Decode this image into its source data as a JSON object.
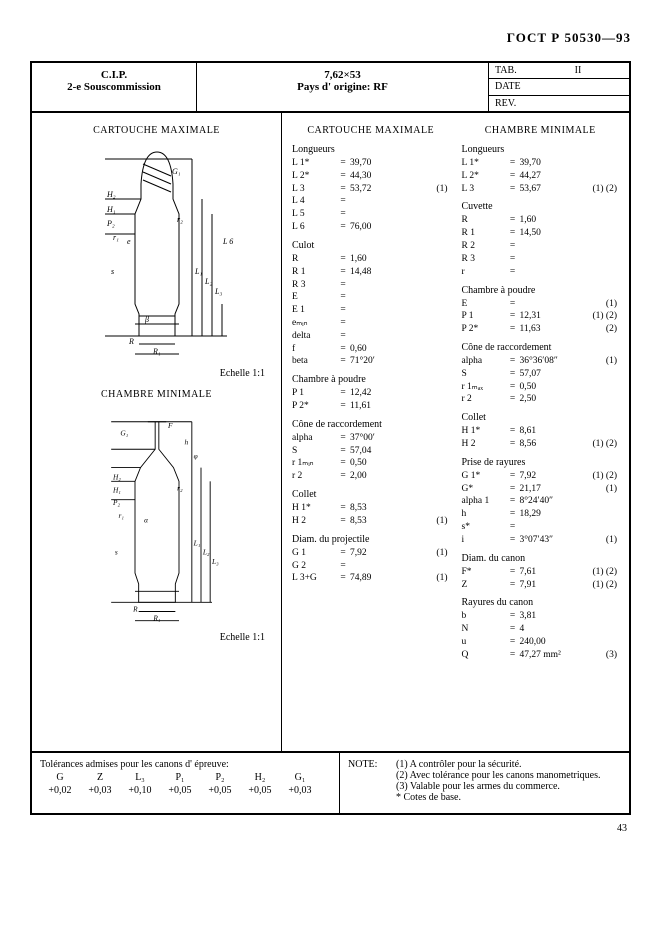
{
  "doc_id": "ГОСТ Р   50530—93",
  "header": {
    "cip": "C.I.P.",
    "sous": "2-e Souscommission",
    "caliber": "7,62×53",
    "origin": "Pays d' origine: RF",
    "tab_label": "TAB.",
    "tab_val": "II",
    "date_label": "DATE",
    "rev_label": "REV."
  },
  "left": {
    "title1": "CARTOUCHE MAXIMALE",
    "scale1": "Echelle 1:1",
    "title2": "CHAMBRE MINIMALE",
    "scale2": "Echelle 1:1",
    "diag1_labels": {
      "H2": "H₂",
      "H1": "H₁",
      "P2": "P₂",
      "r1": "r₁",
      "e": "e",
      "s": "s",
      "beta": "β",
      "R": "R",
      "Rcap": "R₁",
      "G1": "G₁",
      "r2": "r₂",
      "L1": "L₁",
      "L2": "L₂",
      "L3": "L₃",
      "L6": "L 6"
    },
    "diag2_labels": {
      "G1": "G₁",
      "F": "F",
      "h": "h",
      "phi": "φ",
      "H2": "H₂",
      "H1": "H₁",
      "P2": "P₂",
      "r1": "r₁",
      "alpha": "α",
      "s": "s",
      "r2": "r₂",
      "L1": "L₁",
      "L2": "L₂",
      "L3": "L₃",
      "R": "R",
      "R1": "R₁"
    }
  },
  "colA": {
    "title": "CARTOUCHE MAXIMALE",
    "groups": [
      {
        "head": "Longueurs",
        "rows": [
          {
            "k": "L 1*",
            "v": "39,70"
          },
          {
            "k": "L 2*",
            "v": "44,30"
          },
          {
            "k": "L 3",
            "v": "53,72",
            "n": "(1)"
          },
          {
            "k": "L 4",
            "v": ""
          },
          {
            "k": "L 5",
            "v": ""
          },
          {
            "k": "L 6",
            "v": "76,00"
          }
        ]
      },
      {
        "head": "Culot",
        "rows": [
          {
            "k": "R",
            "v": "1,60"
          },
          {
            "k": "R 1",
            "v": "14,48"
          },
          {
            "k": "R 3",
            "v": ""
          },
          {
            "k": "E",
            "v": ""
          },
          {
            "k": "E 1",
            "v": ""
          },
          {
            "k": "eₘᵢₙ",
            "v": ""
          },
          {
            "k": "delta",
            "v": ""
          },
          {
            "k": "f",
            "v": "0,60"
          },
          {
            "k": "beta",
            "v": "71°20′"
          }
        ]
      },
      {
        "head": "Chambre à poudre",
        "rows": [
          {
            "k": "P 1",
            "v": "12,42"
          },
          {
            "k": "P 2*",
            "v": "11,61"
          }
        ]
      },
      {
        "head": "Cône de raccordement",
        "rows": [
          {
            "k": "alpha",
            "v": "37°00′"
          },
          {
            "k": "S",
            "v": "57,04"
          },
          {
            "k": "r 1ₘᵢₙ",
            "v": "0,50"
          },
          {
            "k": "r 2",
            "v": "2,00"
          }
        ]
      },
      {
        "head": "Collet",
        "rows": [
          {
            "k": "H 1*",
            "v": "8,53"
          },
          {
            "k": "H 2",
            "v": "8,53",
            "n": "(1)"
          }
        ]
      },
      {
        "head": "Diam. du projectile",
        "rows": [
          {
            "k": "G 1",
            "v": "7,92",
            "n": "(1)"
          },
          {
            "k": "G 2",
            "v": ""
          },
          {
            "k": "L 3+G",
            "v": "74,89",
            "n": "(1)"
          }
        ]
      }
    ]
  },
  "colB": {
    "title": "CHAMBRE MINIMALE",
    "groups": [
      {
        "head": "Longueurs",
        "rows": [
          {
            "k": "L 1*",
            "v": "39,70"
          },
          {
            "k": "L 2*",
            "v": "44,27"
          },
          {
            "k": "L 3",
            "v": "53,67",
            "n": "(1) (2)"
          }
        ]
      },
      {
        "head": "Cuvette",
        "rows": [
          {
            "k": "R",
            "v": "1,60"
          },
          {
            "k": "R 1",
            "v": "14,50"
          },
          {
            "k": "R 2",
            "v": ""
          },
          {
            "k": "R 3",
            "v": ""
          },
          {
            "k": "r",
            "v": ""
          }
        ]
      },
      {
        "head": "Chambre à poudre",
        "rows": [
          {
            "k": "E",
            "v": "",
            "n": "(1)"
          },
          {
            "k": "P 1",
            "v": "12,31",
            "n": "(1) (2)"
          },
          {
            "k": "P 2*",
            "v": "11,63",
            "n": "(2)"
          }
        ]
      },
      {
        "head": "Cône de raccordement",
        "rows": [
          {
            "k": "alpha",
            "v": "36°36′08″",
            "n": "(1)"
          },
          {
            "k": "S",
            "v": "57,07"
          },
          {
            "k": "r 1ₘₐₓ",
            "v": "0,50"
          },
          {
            "k": "r 2",
            "v": "2,50"
          }
        ]
      },
      {
        "head": "Collet",
        "rows": [
          {
            "k": "H 1*",
            "v": "8,61"
          },
          {
            "k": "H 2",
            "v": "8,56",
            "n": "(1) (2)"
          }
        ]
      },
      {
        "head": "Prise de rayures",
        "rows": [
          {
            "k": "G 1*",
            "v": "7,92",
            "n": "(1) (2)"
          },
          {
            "k": "G*",
            "v": "21,17",
            "n": "(1)"
          },
          {
            "k": "alpha 1",
            "v": "8°24′40″"
          },
          {
            "k": "h",
            "v": "18,29"
          },
          {
            "k": "s*",
            "v": ""
          },
          {
            "k": "i",
            "v": "3°07′43″",
            "n": "(1)"
          }
        ]
      },
      {
        "head": "Diam. du canon",
        "rows": [
          {
            "k": "F*",
            "v": "7,61",
            "n": "(1) (2)"
          },
          {
            "k": "Z",
            "v": "7,91",
            "n": "(1) (2)"
          }
        ]
      },
      {
        "head": "Rayures du canon",
        "rows": [
          {
            "k": "b",
            "v": "3,81"
          },
          {
            "k": "N",
            "v": "4"
          },
          {
            "k": "u",
            "v": "240,00"
          },
          {
            "k": "Q",
            "v": "47,27 mm²",
            "n": "(3)"
          }
        ]
      }
    ]
  },
  "footer": {
    "tol_title": "Tolérances admises pour les canons d' épreuve:",
    "tol_heads": [
      "G",
      "Z",
      "L₃",
      "P₁",
      "P₂",
      "H₂",
      "G₁"
    ],
    "tol_vals": [
      "+0,02",
      "+0,03",
      "+0,10",
      "+0,05",
      "+0,05",
      "+0,05",
      "+0,03"
    ],
    "note_label": "NOTE:",
    "notes": [
      "(1) A contrôler pour la sécurité.",
      "(2) Avec tolérance pour les canons manometriques.",
      "(3) Valable pour les armes du commerce.",
      "  * Cotes de base."
    ]
  },
  "page_num": "43"
}
